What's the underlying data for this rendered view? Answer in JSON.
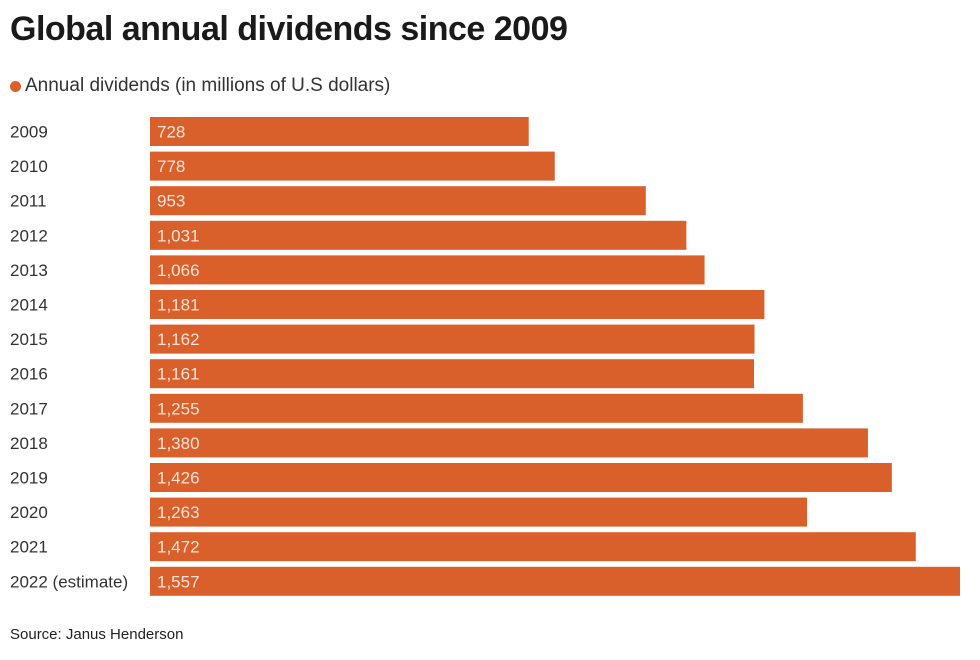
{
  "title": "Global annual dividends since 2009",
  "legend": {
    "label": "Annual dividends (in millions of U.S dollars)"
  },
  "source": "Source: Janus Henderson",
  "colors": {
    "bar": "#d95f2b",
    "bar_label": "#fbe3d6",
    "category_label": "#333333"
  },
  "chart_data": {
    "type": "bar",
    "orientation": "horizontal",
    "title": "Global annual dividends since 2009",
    "xlabel": "",
    "ylabel": "",
    "grid": false,
    "legend_placement": "top-left",
    "xlim": [
      0,
      1557
    ],
    "series": [
      {
        "name": "Annual dividends (in millions of U.S dollars)",
        "values": [
          728,
          778,
          953,
          1031,
          1066,
          1181,
          1162,
          1161,
          1255,
          1380,
          1426,
          1263,
          1472,
          1557
        ]
      }
    ],
    "categories": [
      "2009",
      "2010",
      "2011",
      "2012",
      "2013",
      "2014",
      "2015",
      "2016",
      "2017",
      "2018",
      "2019",
      "2020",
      "2021",
      "2022 (estimate)"
    ],
    "data_labels": [
      "728",
      "778",
      "953",
      "1,031",
      "1,066",
      "1,181",
      "1,162",
      "1,161",
      "1,255",
      "1,380",
      "1,426",
      "1,263",
      "1,472",
      "1,557"
    ]
  }
}
